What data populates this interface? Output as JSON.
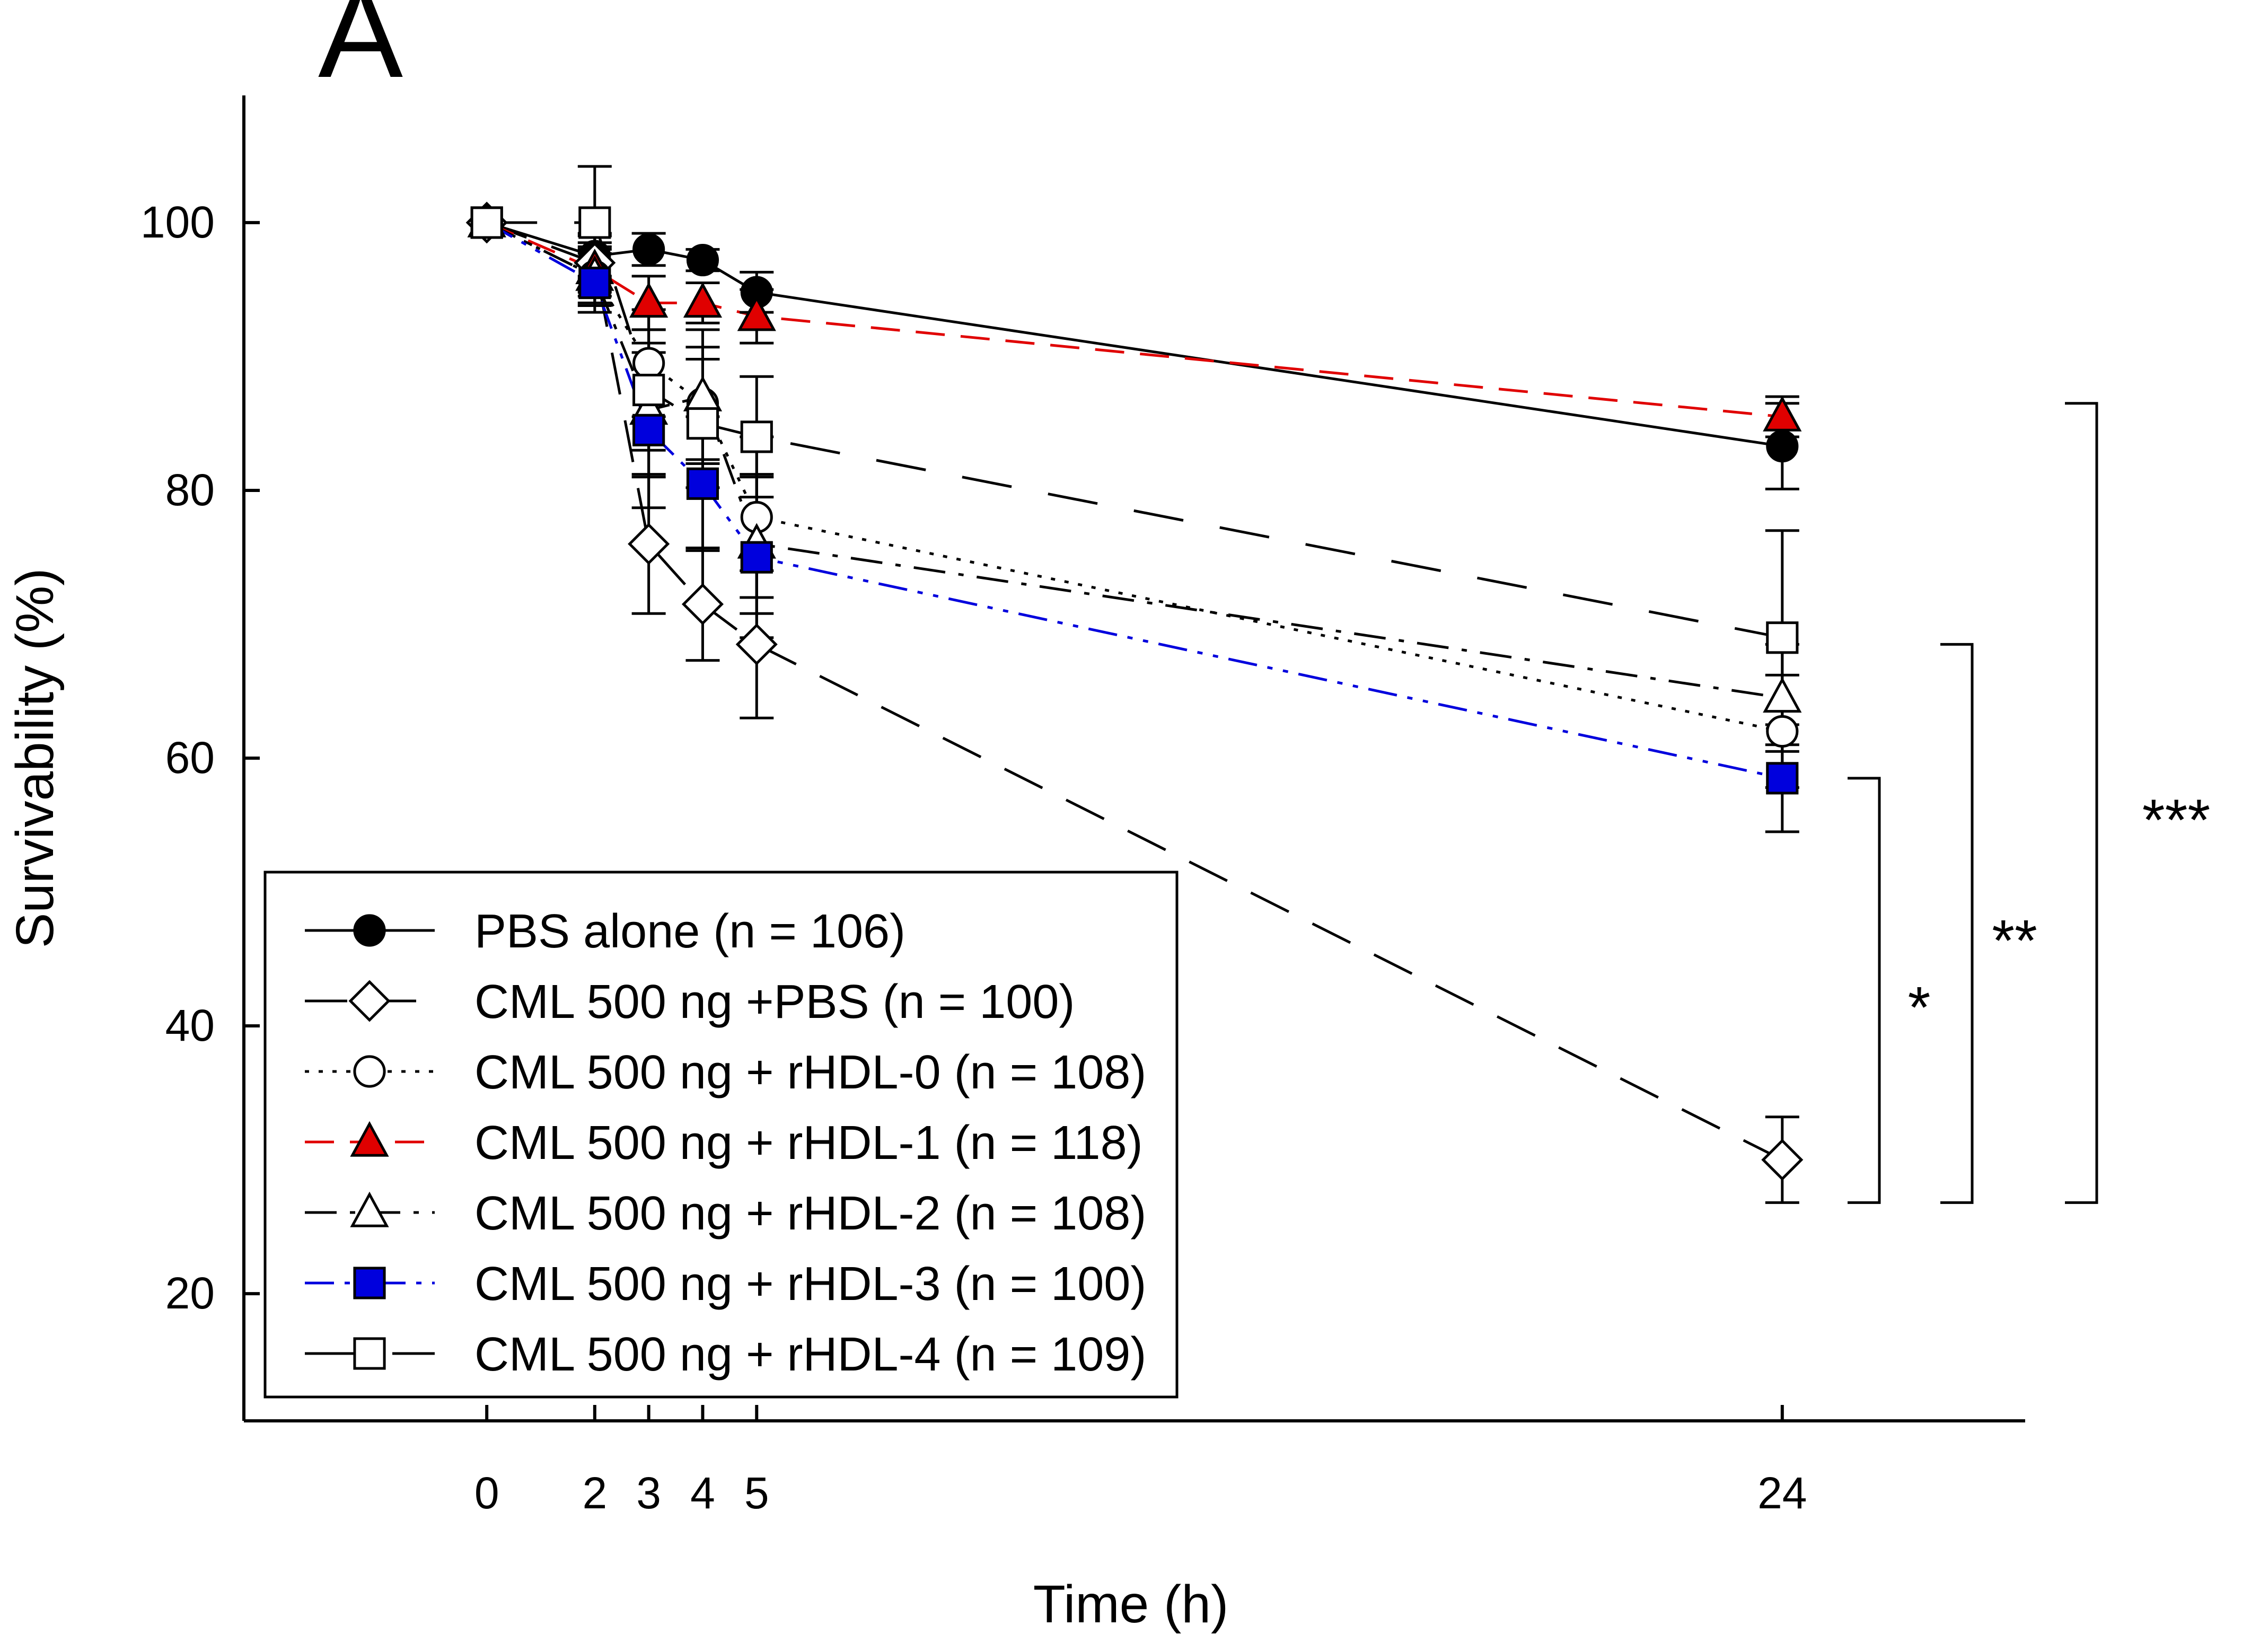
{
  "panel_label": "A",
  "colors": {
    "axis": "#000000",
    "red": "#e00000",
    "blue": "#0000dd",
    "black": "#000000",
    "white": "#ffffff"
  },
  "chart_data": {
    "type": "line",
    "xlabel": "Time (h)",
    "ylabel": "Survivability (%)",
    "x": [
      0,
      2,
      3,
      4,
      5,
      24
    ],
    "x_tick_labels": [
      "0",
      "2",
      "3",
      "4",
      "5",
      "24"
    ],
    "y_ticks": [
      20,
      40,
      60,
      80,
      100
    ],
    "y_tick_labels": [
      "20",
      "40",
      "60",
      "80",
      "100"
    ],
    "xlim": [
      -4.5,
      28.5
    ],
    "ylim": [
      10.5,
      109.5
    ],
    "legend_position": "bottom-left",
    "series": [
      {
        "name": "PBS alone (n = 106)",
        "marker": "circle",
        "fill": "#000000",
        "line_color": "#000000",
        "dash": "solid",
        "values": [
          100,
          97.5,
          98,
          97.2,
          94.8,
          83.3
        ],
        "errors": [
          0,
          1.5,
          1.2,
          0.8,
          1.5,
          3.2
        ]
      },
      {
        "name": "CML 500 ng +PBS (n = 100)",
        "marker": "diamond",
        "fill": "#ffffff",
        "line_color": "#000000",
        "dash": "long-dash",
        "values": [
          100,
          97,
          76,
          71.5,
          68.5,
          30
        ],
        "errors": [
          0,
          2.2,
          5.2,
          4.2,
          5.5,
          3.2
        ]
      },
      {
        "name": "CML 500 ng + rHDL-0 (n = 108)",
        "marker": "circle",
        "fill": "#ffffff",
        "line_color": "#000000",
        "dash": "dotted",
        "values": [
          100,
          96,
          89.5,
          86.5,
          78,
          62
        ],
        "errors": [
          0,
          2.0,
          4.0,
          4.2,
          6.0,
          4.2
        ]
      },
      {
        "name": "CML 500 ng + rHDL-1 (n = 118)",
        "marker": "triangle",
        "fill": "#e00000",
        "line_color": "#e00000",
        "dash": "dash",
        "values": [
          100,
          96.5,
          94,
          94,
          93,
          85.5
        ],
        "errors": [
          0,
          2.0,
          2.0,
          1.5,
          2.0,
          1.5
        ]
      },
      {
        "name": "CML 500 ng + rHDL-2 (n = 108)",
        "marker": "triangle",
        "fill": "#ffffff",
        "line_color": "#000000",
        "dash": "dash-dot",
        "values": [
          100,
          96,
          86,
          87,
          76,
          64.5
        ],
        "errors": [
          0,
          2.2,
          5.0,
          5.0,
          5.2,
          4.0
        ]
      },
      {
        "name": "CML 500 ng + rHDL-3 (n = 100)",
        "marker": "square",
        "fill": "#0000dd",
        "line_color": "#0000dd",
        "dash": "dash-dot-dot",
        "values": [
          100,
          95.5,
          84.5,
          80.5,
          75,
          58.5
        ],
        "errors": [
          0,
          2.2,
          5.8,
          5.0,
          6.0,
          4.0
        ]
      },
      {
        "name": "CML 500 ng + rHDL-4 (n = 109)",
        "marker": "square",
        "fill": "#ffffff",
        "line_color": "#000000",
        "dash": "long-dash-gap",
        "values": [
          100,
          100,
          87.5,
          85,
          84,
          69
        ],
        "errors": [
          0,
          4.2,
          4.5,
          4.8,
          4.5,
          8.0
        ]
      }
    ],
    "significance": [
      {
        "label": "*",
        "from": 58.5,
        "to": 26.8
      },
      {
        "label": "**",
        "from": 68.5,
        "to": 26.8
      },
      {
        "label": "***",
        "from": 86.5,
        "to": 26.8
      }
    ]
  }
}
